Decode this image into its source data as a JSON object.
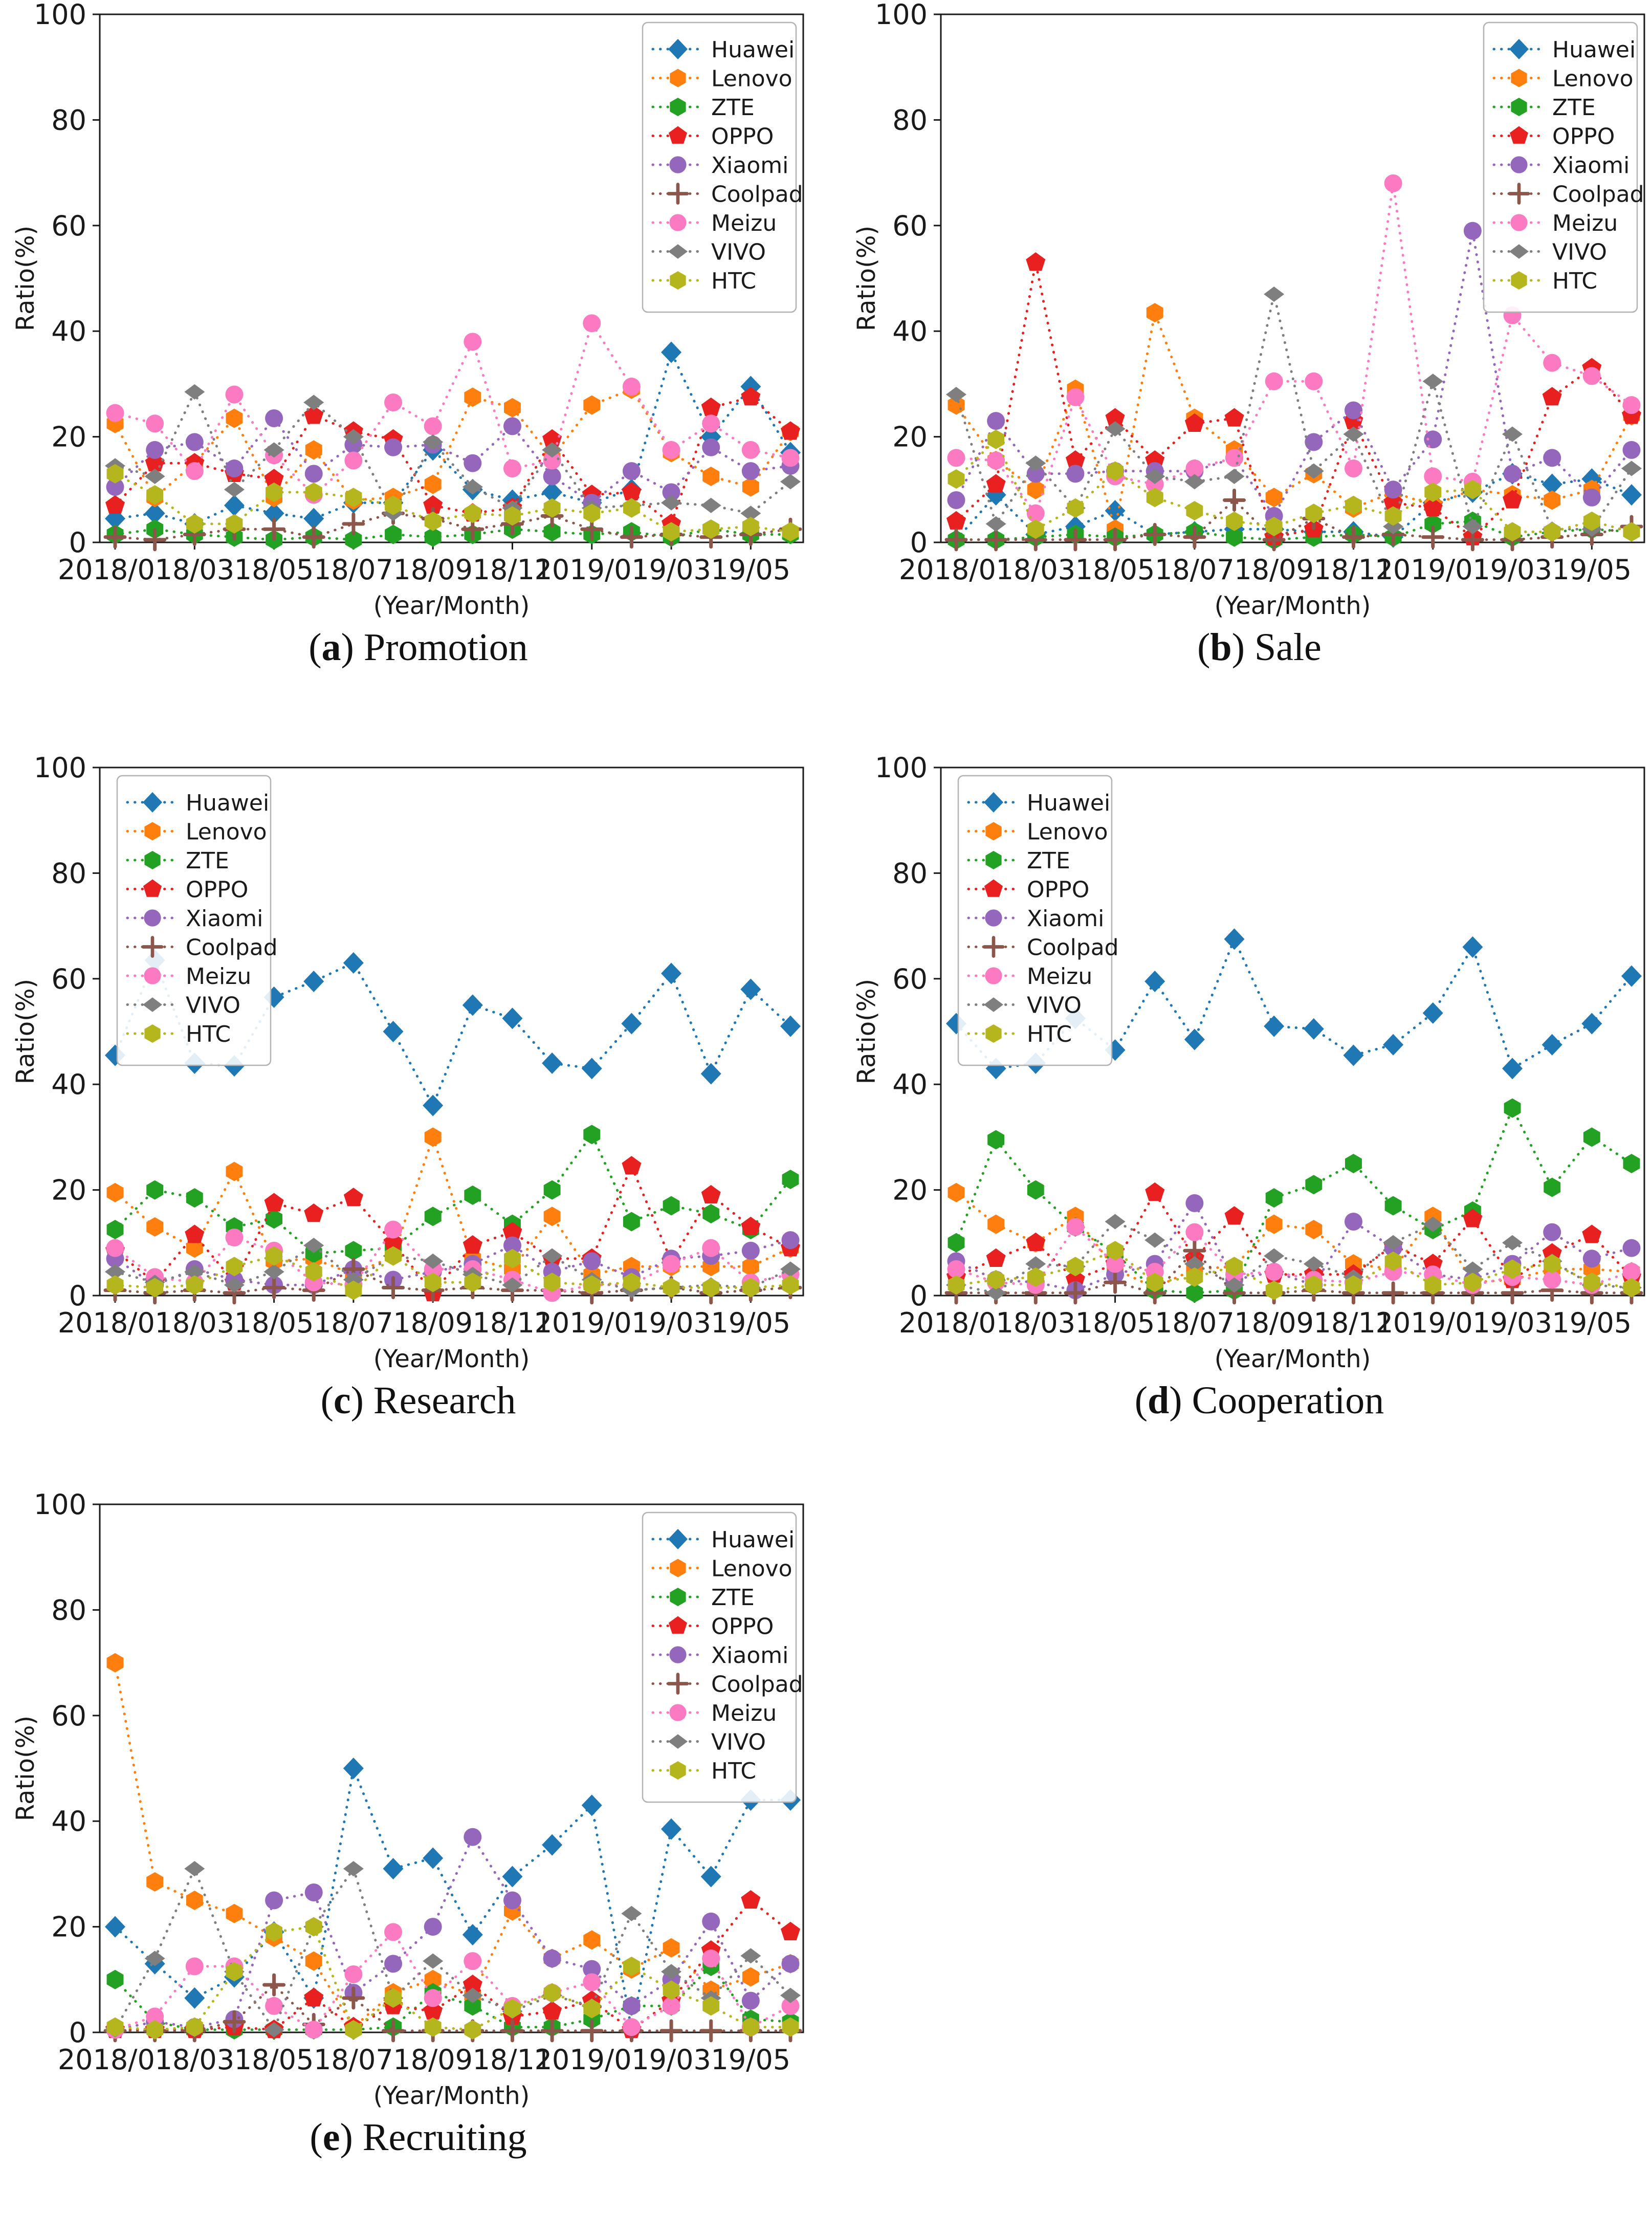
{
  "page": {
    "background": "#ffffff",
    "figure_type": "multi-panel line charts",
    "panel_count": 5
  },
  "chart_data": {
    "type": "line",
    "line_style": "dotted",
    "x_categories": [
      "2018/01",
      "18/02",
      "18/03",
      "18/04",
      "18/05",
      "18/06",
      "18/07",
      "18/08",
      "18/09",
      "18/10",
      "18/11",
      "18/12",
      "2019/01",
      "19/02",
      "19/03",
      "19/04",
      "19/05",
      "19/06"
    ],
    "x_tick_labels": [
      "2018/01",
      "18/03",
      "18/05",
      "18/07",
      "18/09",
      "18/11",
      "2019/01",
      "19/03",
      "19/05"
    ],
    "xlabel": "(Year/Month)",
    "ylabel": "Ratio(%)",
    "ylim": [
      0,
      100
    ],
    "yticks": [
      0,
      20,
      40,
      60,
      80,
      100
    ],
    "grid": "off",
    "series_meta": [
      {
        "name": "Huawei",
        "color": "#1f77b4",
        "marker": "diamond"
      },
      {
        "name": "Lenovo",
        "color": "#ff7f0e",
        "marker": "hexagon"
      },
      {
        "name": "ZTE",
        "color": "#22a122",
        "marker": "hexagon"
      },
      {
        "name": "OPPO",
        "color": "#e82020",
        "marker": "pentagon"
      },
      {
        "name": "Xiaomi",
        "color": "#9467bd",
        "marker": "circle"
      },
      {
        "name": "Coolpad",
        "color": "#8c564b",
        "marker": "plus"
      },
      {
        "name": "Meizu",
        "color": "#fb7ac2",
        "marker": "circle"
      },
      {
        "name": "VIVO",
        "color": "#7f7f7f",
        "marker": "thin-diamond"
      },
      {
        "name": "HTC",
        "color": "#b5b51d",
        "marker": "hexagon"
      }
    ],
    "charts": [
      {
        "key": "a",
        "caption_letter": "a",
        "caption_title": "Promotion",
        "legend_position": "top-right",
        "series": {
          "Huawei": [
            4.5,
            5.5,
            3.5,
            7,
            5.5,
            4.5,
            7.5,
            7.5,
            17.5,
            10,
            8,
            9.5,
            7.5,
            10,
            36,
            20,
            29.5,
            17
          ],
          "Lenovo": [
            22.5,
            8.5,
            15,
            23.5,
            8.5,
            17.5,
            8,
            8.5,
            11,
            27.5,
            25.5,
            16,
            26,
            29,
            17,
            12.5,
            10.5,
            21
          ],
          "ZTE": [
            1.5,
            2.5,
            1.5,
            1,
            0.5,
            1,
            0.5,
            1.5,
            1,
            1.5,
            2.5,
            2,
            1.5,
            2,
            1,
            2.5,
            1.5,
            1.5
          ],
          "OPPO": [
            7,
            15,
            15,
            13,
            12,
            24,
            21,
            19.5,
            7,
            5.5,
            6.5,
            19.5,
            9,
            9.5,
            3.5,
            25.5,
            27.5,
            21
          ],
          "Xiaomi": [
            10.5,
            17.5,
            19,
            14,
            23.5,
            13,
            18.5,
            18,
            18.5,
            15,
            22,
            12.5,
            7.5,
            13.5,
            9.5,
            18,
            13.5,
            14.5
          ],
          "Coolpad": [
            1,
            0.5,
            1.5,
            2.5,
            2.5,
            1,
            3.5,
            5.5,
            4.5,
            2.5,
            3.5,
            5,
            2.5,
            1,
            1.5,
            1,
            1.5,
            2.5
          ],
          "Meizu": [
            24.5,
            22.5,
            13.5,
            28,
            16.5,
            9,
            15.5,
            26.5,
            22,
            38,
            14,
            15.5,
            41.5,
            29.5,
            17.5,
            22.5,
            17.5,
            16
          ],
          "VIVO": [
            14.5,
            12.5,
            28.5,
            10,
            17.5,
            26.5,
            20,
            5.5,
            19,
            10.5,
            6.5,
            17.5,
            6.5,
            7,
            7.5,
            7,
            5.5,
            11.5
          ],
          "HTC": [
            13,
            9,
            3.5,
            3.5,
            9.5,
            9.5,
            8.5,
            7,
            4,
            5.5,
            5,
            6.5,
            5.5,
            6.5,
            2,
            2.5,
            3,
            2
          ]
        }
      },
      {
        "key": "b",
        "caption_letter": "b",
        "caption_title": "Sale",
        "legend_position": "top-right",
        "series": {
          "Huawei": [
            0.5,
            9,
            1.5,
            3,
            6,
            1.5,
            2,
            2.5,
            2.5,
            2,
            2,
            1,
            7.5,
            9.5,
            13,
            11,
            12,
            9
          ],
          "Lenovo": [
            26,
            15.5,
            10,
            29,
            2.5,
            43.5,
            23.5,
            17.5,
            8.5,
            13,
            6.5,
            9.5,
            7,
            10,
            9,
            8,
            10,
            24
          ],
          "ZTE": [
            0.5,
            0.5,
            1,
            1.5,
            1,
            1.5,
            2,
            1,
            0.5,
            1,
            1.5,
            1,
            3.5,
            4,
            1,
            2,
            2.5,
            2
          ],
          "OPPO": [
            4,
            11,
            53,
            15.5,
            23.5,
            15.5,
            22.5,
            23.5,
            1,
            2.5,
            23,
            7.5,
            6.5,
            1,
            8,
            27.5,
            33,
            24
          ],
          "Xiaomi": [
            8,
            23,
            13,
            13,
            13.5,
            13.5,
            13.5,
            16,
            5,
            19,
            25,
            10,
            19.5,
            59,
            13,
            16,
            8.5,
            17.5
          ],
          "Coolpad": [
            0.5,
            0.5,
            0.5,
            0.5,
            0.5,
            1.5,
            1,
            8,
            0.5,
            4.5,
            1,
            1.5,
            1,
            0.5,
            0.5,
            1,
            1.5,
            3
          ],
          "Meizu": [
            16,
            15.5,
            5.5,
            27.5,
            12.5,
            11,
            14,
            16,
            30.5,
            30.5,
            14,
            68,
            12.5,
            11.5,
            43,
            34,
            31.5,
            26
          ],
          "VIVO": [
            28,
            3.5,
            15,
            6.5,
            21.5,
            12.5,
            11.5,
            12.5,
            47,
            13.5,
            20.5,
            3,
            30.5,
            3,
            20.5,
            2.5,
            2.5,
            14
          ],
          "HTC": [
            12,
            19.5,
            2.5,
            6.5,
            13.5,
            8.5,
            6,
            4,
            3,
            5.5,
            7,
            5,
            9.5,
            10,
            2,
            2,
            4,
            2
          ]
        }
      },
      {
        "key": "c",
        "caption_letter": "c",
        "caption_title": "Research",
        "legend_position": "top-left",
        "series": {
          "Huawei": [
            45.5,
            63.5,
            44,
            43.5,
            56.5,
            59.5,
            63,
            50,
            36,
            55,
            52.5,
            44,
            43,
            51.5,
            61,
            42,
            58,
            51
          ],
          "Lenovo": [
            19.5,
            13,
            9,
            23.5,
            6.5,
            7,
            4,
            7.5,
            30,
            7,
            5,
            15,
            4,
            5.5,
            5.5,
            5.5,
            5.5,
            9
          ],
          "ZTE": [
            12.5,
            20,
            18.5,
            13,
            14.5,
            8,
            8.5,
            9,
            15,
            19,
            13.5,
            20,
            30.5,
            14,
            17,
            15.5,
            12.5,
            22
          ],
          "OPPO": [
            8.5,
            2.5,
            11.5,
            2.5,
            17.5,
            15.5,
            18.5,
            10,
            0.5,
            9.5,
            12,
            7,
            7,
            24.5,
            6.5,
            19,
            13,
            9
          ],
          "Xiaomi": [
            7,
            2,
            5,
            3,
            2,
            2,
            5,
            3,
            4.5,
            6,
            9.5,
            4.5,
            6.5,
            3.5,
            7,
            7.5,
            8.5,
            10.5
          ],
          "Coolpad": [
            1,
            0.5,
            1,
            0.5,
            1.5,
            1,
            5,
            1.5,
            1,
            1.5,
            1,
            1,
            0.5,
            1,
            1.5,
            0.5,
            1,
            1.5
          ],
          "Meizu": [
            9,
            3.5,
            2.5,
            11,
            8.5,
            2.5,
            2,
            12.5,
            5,
            5,
            3,
            0.5,
            2,
            2,
            6,
            9,
            2.5,
            4
          ],
          "VIVO": [
            4.5,
            2.5,
            4.5,
            2,
            4.5,
            9.5,
            3,
            7.5,
            6.5,
            4,
            2,
            7.5,
            3,
            1,
            1.5,
            2,
            1.5,
            5
          ],
          "HTC": [
            2,
            1.5,
            2,
            5.5,
            7.5,
            4.5,
            1,
            7.5,
            2.5,
            2.5,
            7,
            2.5,
            2,
            2.5,
            1.5,
            1.5,
            1.5,
            2
          ]
        }
      },
      {
        "key": "d",
        "caption_letter": "d",
        "caption_title": "Cooperation",
        "legend_position": "top-left",
        "series": {
          "Huawei": [
            51.5,
            43,
            44,
            52.5,
            46.5,
            59.5,
            48.5,
            67.5,
            51,
            50.5,
            45.5,
            47.5,
            53.5,
            66,
            43,
            47.5,
            51.5,
            60.5
          ],
          "Lenovo": [
            19.5,
            13.5,
            10,
            15,
            5,
            1.5,
            5,
            5.5,
            13.5,
            12.5,
            6,
            5,
            15,
            2.5,
            3,
            5,
            5,
            4.5
          ],
          "ZTE": [
            10,
            29.5,
            20,
            13,
            8,
            1,
            0.5,
            1,
            18.5,
            21,
            25,
            17,
            12.5,
            16,
            35.5,
            20.5,
            30,
            25
          ],
          "OPPO": [
            3.5,
            7,
            10,
            3,
            6,
            19.5,
            7,
            15,
            4,
            4,
            4,
            9.5,
            6,
            14.5,
            3,
            8,
            11.5,
            3.5
          ],
          "Xiaomi": [
            6.5,
            3,
            2.5,
            1,
            4,
            6,
            17.5,
            3,
            4.5,
            2,
            14,
            9,
            4,
            3,
            6,
            12,
            7,
            9
          ],
          "Coolpad": [
            0.5,
            0.5,
            0.5,
            0.5,
            2.5,
            0.5,
            8.5,
            0.5,
            0.5,
            1,
            0.5,
            0.5,
            0.5,
            0.5,
            0.5,
            1,
            0.5,
            0.5
          ],
          "Meizu": [
            5,
            2.5,
            2,
            13,
            6,
            4.5,
            12,
            4,
            4.5,
            3,
            2.5,
            4.5,
            4,
            2,
            3.5,
            3,
            2,
            4.5
          ],
          "VIVO": [
            2,
            0.5,
            6,
            5.5,
            14,
            10.5,
            6,
            2,
            7.5,
            6,
            3.5,
            10,
            13.5,
            5,
            10,
            6.5,
            2,
            1.5
          ],
          "HTC": [
            2,
            3,
            3.5,
            5.5,
            8.5,
            2.5,
            3.5,
            5.5,
            1,
            2,
            2,
            6.5,
            2,
            2.5,
            5,
            6,
            2.5,
            1.5
          ]
        }
      },
      {
        "key": "e",
        "caption_letter": "e",
        "caption_title": "Recruiting",
        "legend_position": "top-right",
        "series": {
          "Huawei": [
            20,
            13,
            6.5,
            10.5,
            19,
            6.5,
            50,
            31,
            33,
            18.5,
            29.5,
            35.5,
            43,
            0.5,
            38.5,
            29.5,
            44,
            44
          ],
          "Lenovo": [
            70,
            28.5,
            25,
            22.5,
            18,
            13.5,
            1,
            7.5,
            10,
            7,
            23,
            14,
            17.5,
            12,
            16,
            8,
            10.5,
            13
          ],
          "ZTE": [
            10,
            2,
            0.5,
            0.5,
            0.5,
            0.5,
            0.5,
            1,
            7.5,
            5,
            1,
            1,
            2.5,
            5,
            5,
            12.5,
            2.5,
            2
          ],
          "OPPO": [
            0.5,
            0.5,
            0.5,
            1,
            0.5,
            6.5,
            1,
            5,
            4,
            9,
            3,
            4,
            6,
            0.5,
            6,
            15.5,
            25,
            19
          ],
          "Xiaomi": [
            0.5,
            2,
            1,
            2.5,
            25,
            26.5,
            7.5,
            13,
            20,
            37,
            25,
            14,
            12,
            5,
            10,
            21,
            6,
            13
          ],
          "Coolpad": [
            0.3,
            0.3,
            0.3,
            2,
            9,
            1.5,
            6.5,
            0.3,
            0.3,
            0.3,
            0.3,
            0.3,
            0.3,
            0.3,
            0.3,
            0.3,
            0.3,
            0.3
          ],
          "Meizu": [
            0.5,
            3,
            12.5,
            12.5,
            5,
            0.5,
            11,
            19,
            6.5,
            13.5,
            5,
            7.5,
            9.5,
            1,
            5,
            14,
            1,
            5
          ],
          "VIVO": [
            0.5,
            14,
            31,
            11.5,
            0.5,
            20,
            31,
            6.5,
            13.5,
            7,
            4,
            7,
            5,
            22.5,
            11.5,
            6.5,
            14.5,
            7
          ],
          "HTC": [
            1,
            0.5,
            1,
            11.5,
            19,
            20,
            0.5,
            6.5,
            1,
            0.5,
            4.5,
            7.5,
            4.5,
            12.5,
            8,
            5,
            1,
            1
          ]
        }
      }
    ]
  }
}
